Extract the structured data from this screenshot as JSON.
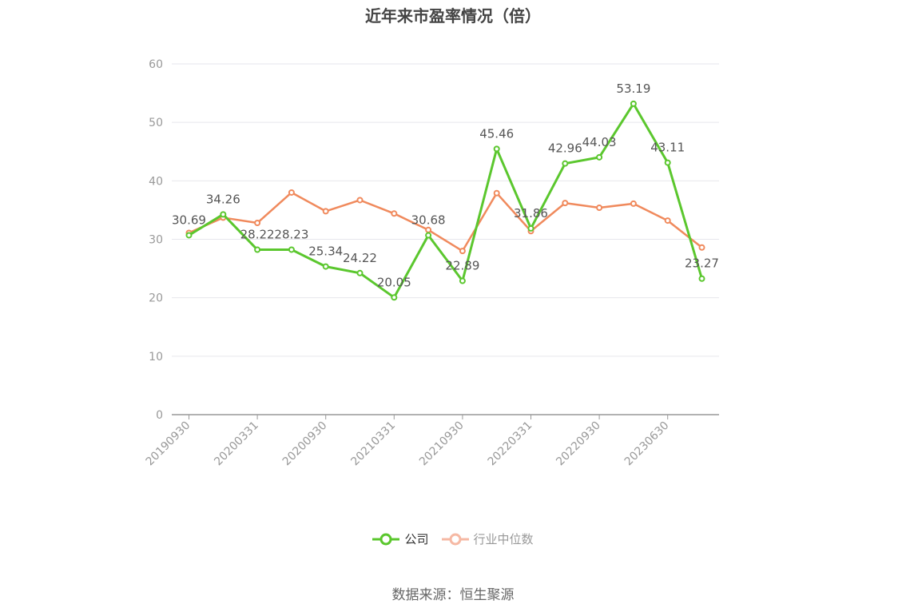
{
  "title": "近年来市盈率情况（倍）",
  "source": "数据来源：恒生聚源",
  "colors": {
    "company": "#5bc72e",
    "industry": "#f08a5d",
    "industry_legend": "#f6b9a4",
    "grid": "#e6e6ec",
    "axis": "#999999"
  },
  "legend": [
    {
      "name": "公司",
      "color": "#5bc72e",
      "icon": "circle-line-icon"
    },
    {
      "name": "行业中位数",
      "color": "#f6b9a4",
      "icon": "circle-line-icon"
    }
  ],
  "chart_data": {
    "type": "line",
    "title": "近年来市盈率情况（倍）",
    "xlabel": "",
    "ylabel": "",
    "ylim": [
      0,
      60
    ],
    "yticks": [
      0,
      10,
      20,
      30,
      40,
      50,
      60
    ],
    "grid": true,
    "legend_position": "bottom",
    "x": [
      "20190930",
      "20191231",
      "20200331",
      "20200630",
      "20200930",
      "20201231",
      "20210331",
      "20210630",
      "20210930",
      "20211231",
      "20220331",
      "20220630",
      "20220930",
      "20221231",
      "20230630",
      "20230930"
    ],
    "x_tick_labels": [
      "20190930",
      "20200331",
      "20200930",
      "20210331",
      "20210930",
      "20220331",
      "20220930",
      "20230630"
    ],
    "series": [
      {
        "name": "公司",
        "color": "#5bc72e",
        "values": [
          30.69,
          34.26,
          28.22,
          28.23,
          25.34,
          24.22,
          20.05,
          30.68,
          22.89,
          45.46,
          31.86,
          42.96,
          44.03,
          53.19,
          43.11,
          23.27
        ],
        "show_labels": true
      },
      {
        "name": "行业中位数",
        "color": "#f08a5d",
        "values": [
          31.1,
          33.7,
          32.8,
          38.0,
          34.8,
          36.7,
          34.4,
          31.6,
          28.0,
          37.9,
          31.4,
          36.2,
          35.4,
          36.1,
          33.2,
          28.6
        ],
        "show_labels": false
      }
    ]
  }
}
